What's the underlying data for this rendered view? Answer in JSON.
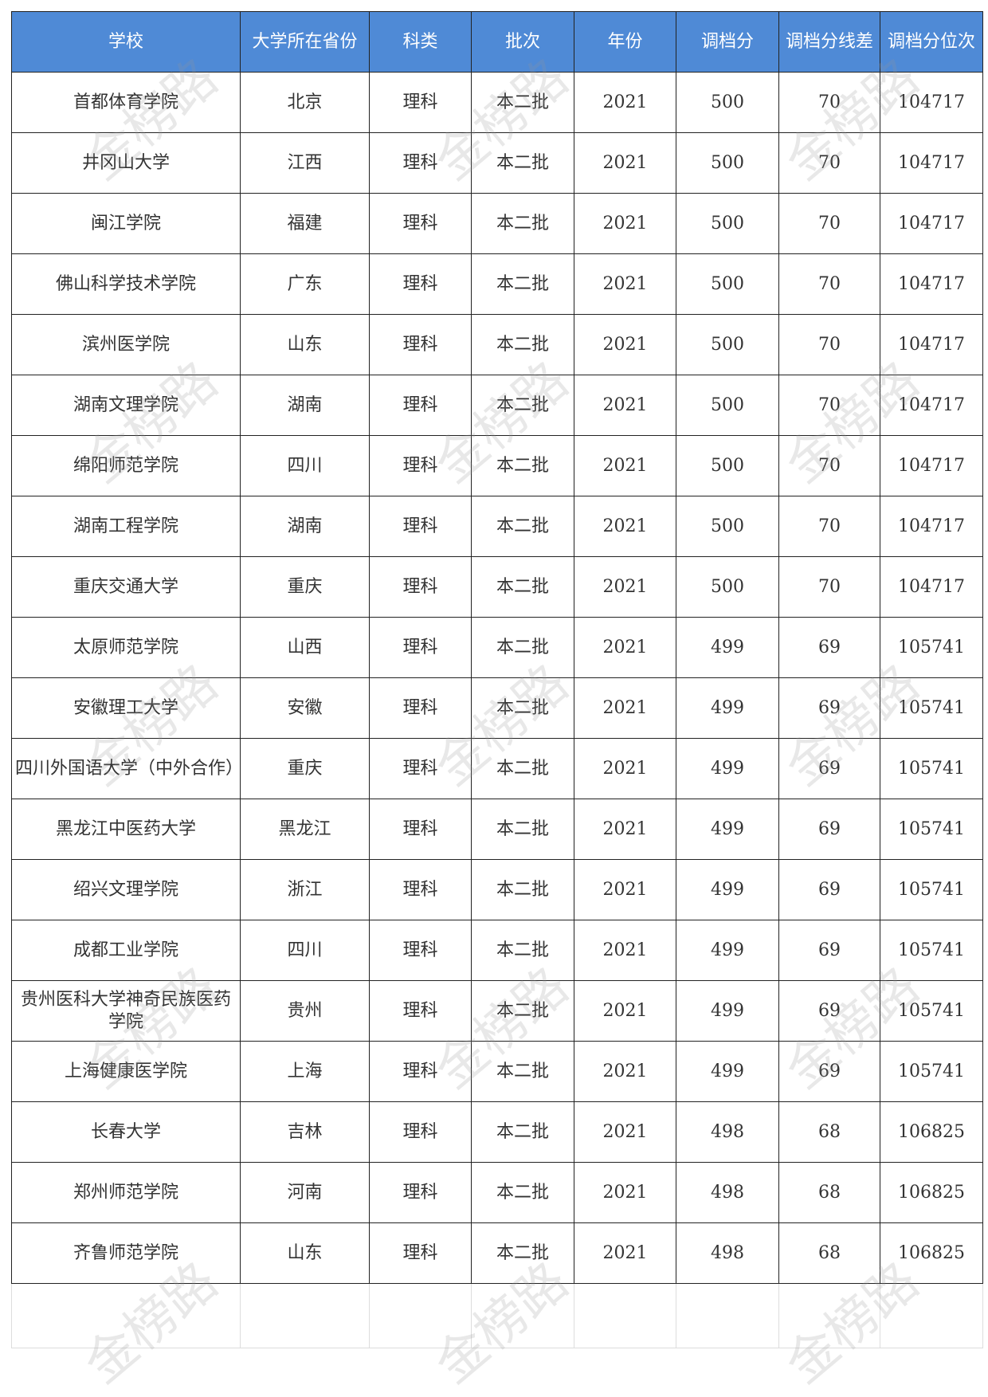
{
  "headers": [
    "学校",
    "大学所在省份",
    "科类",
    "批次",
    "年份",
    "调档分",
    "调档分线差",
    "调档分位次"
  ],
  "rows": [
    [
      "首都体育学院",
      "北京",
      "理科",
      "本二批",
      "2021",
      "500",
      "70",
      "104717"
    ],
    [
      "井冈山大学",
      "江西",
      "理科",
      "本二批",
      "2021",
      "500",
      "70",
      "104717"
    ],
    [
      "闽江学院",
      "福建",
      "理科",
      "本二批",
      "2021",
      "500",
      "70",
      "104717"
    ],
    [
      "佛山科学技术学院",
      "广东",
      "理科",
      "本二批",
      "2021",
      "500",
      "70",
      "104717"
    ],
    [
      "滨州医学院",
      "山东",
      "理科",
      "本二批",
      "2021",
      "500",
      "70",
      "104717"
    ],
    [
      "湖南文理学院",
      "湖南",
      "理科",
      "本二批",
      "2021",
      "500",
      "70",
      "104717"
    ],
    [
      "绵阳师范学院",
      "四川",
      "理科",
      "本二批",
      "2021",
      "500",
      "70",
      "104717"
    ],
    [
      "湖南工程学院",
      "湖南",
      "理科",
      "本二批",
      "2021",
      "500",
      "70",
      "104717"
    ],
    [
      "重庆交通大学",
      "重庆",
      "理科",
      "本二批",
      "2021",
      "500",
      "70",
      "104717"
    ],
    [
      "太原师范学院",
      "山西",
      "理科",
      "本二批",
      "2021",
      "499",
      "69",
      "105741"
    ],
    [
      "安徽理工大学",
      "安徽",
      "理科",
      "本二批",
      "2021",
      "499",
      "69",
      "105741"
    ],
    [
      "四川外国语大学（中外合作）",
      "重庆",
      "理科",
      "本二批",
      "2021",
      "499",
      "69",
      "105741"
    ],
    [
      "黑龙江中医药大学",
      "黑龙江",
      "理科",
      "本二批",
      "2021",
      "499",
      "69",
      "105741"
    ],
    [
      "绍兴文理学院",
      "浙江",
      "理科",
      "本二批",
      "2021",
      "499",
      "69",
      "105741"
    ],
    [
      "成都工业学院",
      "四川",
      "理科",
      "本二批",
      "2021",
      "499",
      "69",
      "105741"
    ],
    [
      "贵州医科大学神奇民族医药学院",
      "贵州",
      "理科",
      "本二批",
      "2021",
      "499",
      "69",
      "105741"
    ],
    [
      "上海健康医学院",
      "上海",
      "理科",
      "本二批",
      "2021",
      "499",
      "69",
      "105741"
    ],
    [
      "长春大学",
      "吉林",
      "理科",
      "本二批",
      "2021",
      "498",
      "68",
      "106825"
    ],
    [
      "郑州师范学院",
      "河南",
      "理科",
      "本二批",
      "2021",
      "498",
      "68",
      "106825"
    ],
    [
      "齐鲁师范学院",
      "山东",
      "理科",
      "本二批",
      "2021",
      "498",
      "68",
      "106825"
    ]
  ],
  "watermark": "金榜路",
  "colors": {
    "header_bg": "#4f8ad6",
    "header_text": "#ffffff"
  }
}
